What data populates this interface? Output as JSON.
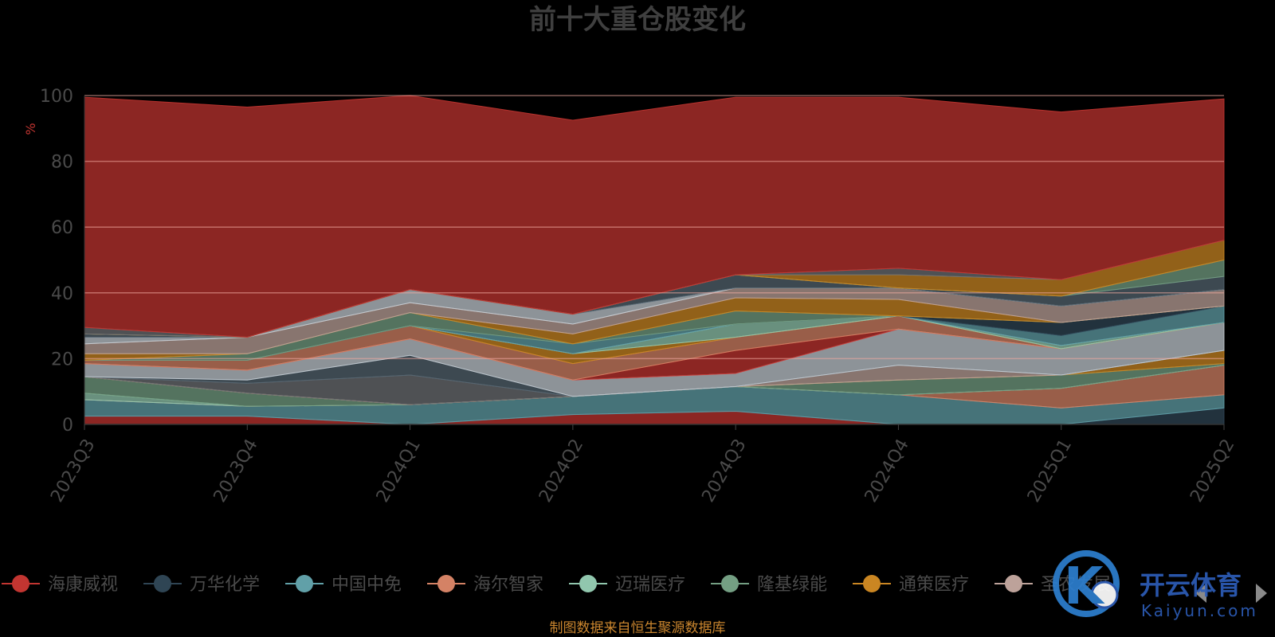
{
  "chart_data": {
    "type": "area",
    "stacked": true,
    "title": "前十大重仓股变化",
    "y_unit": "%",
    "ylim": [
      0,
      100
    ],
    "yticks": [
      "0",
      "20",
      "40",
      "60",
      "80",
      "100"
    ],
    "grid": true,
    "categories": [
      "2023Q3",
      "2023Q4",
      "2024Q1",
      "2024Q2",
      "2024Q3",
      "2024Q4",
      "2025Q1",
      "2025Q2"
    ],
    "series": [
      {
        "name": "海康威视",
        "color": "#c23531",
        "values": [
          2.5,
          2.5,
          0,
          3,
          4,
          0,
          0,
          0
        ]
      },
      {
        "name": "万华化学",
        "color": "#2f4554",
        "values": [
          0,
          0,
          0,
          0,
          0,
          0,
          0,
          5
        ]
      },
      {
        "name": "中国中免",
        "color": "#61a0a8",
        "values": [
          5,
          3,
          6,
          5.5,
          7.5,
          9,
          5,
          4
        ]
      },
      {
        "name": "海尔智家",
        "color": "#d48265",
        "values": [
          0,
          0,
          0,
          0,
          0,
          0,
          6,
          9
        ]
      },
      {
        "name": "迈瑞医疗",
        "color": "#91c7ae",
        "values": [
          2,
          0,
          0,
          0,
          0,
          0,
          0,
          0
        ]
      },
      {
        "name": "隆基绿能",
        "color": "#749f83",
        "values": [
          5,
          4,
          0,
          0,
          0,
          4.5,
          4,
          0.5
        ]
      },
      {
        "name": "通策医疗",
        "color": "#ca8622",
        "values": [
          0,
          0,
          0,
          0,
          0,
          0,
          0,
          4
        ]
      },
      {
        "name": "圣农发展",
        "color": "#bda29a",
        "values": [
          0,
          0,
          0,
          0,
          0,
          4.5,
          0,
          0
        ]
      },
      {
        "name": "",
        "color": "#6e7074",
        "values": [
          0,
          3,
          9,
          0,
          0,
          0,
          0,
          0
        ]
      },
      {
        "name": "",
        "color": "#546570",
        "values": [
          0,
          1,
          6,
          0,
          0,
          0,
          0,
          0
        ]
      },
      {
        "name": "",
        "color": "#c4ccd3",
        "values": [
          4,
          3,
          5,
          5,
          4,
          11,
          8,
          8.5
        ]
      },
      {
        "name": "",
        "color": "#c23531",
        "values": [
          0,
          0,
          0,
          0,
          7,
          0,
          0,
          0
        ]
      },
      {
        "name": "",
        "color": "#d48265",
        "values": [
          1,
          3,
          4,
          5,
          4,
          4,
          0,
          0
        ]
      },
      {
        "name": "",
        "color": "#ca8622",
        "values": [
          0,
          0,
          0,
          3,
          0,
          0,
          0,
          0
        ]
      },
      {
        "name": "",
        "color": "#91c7ae",
        "values": [
          0,
          0,
          0,
          0,
          4,
          0,
          1,
          0
        ]
      },
      {
        "name": "",
        "color": "#61a0a8",
        "values": [
          0,
          0,
          0,
          3,
          0,
          0,
          3,
          5
        ]
      },
      {
        "name": "",
        "color": "#2f4554",
        "values": [
          0,
          0,
          0,
          0,
          0,
          0,
          4,
          0
        ]
      },
      {
        "name": "",
        "color": "#749f83",
        "values": [
          0,
          2,
          4,
          0,
          4,
          0,
          0,
          0
        ]
      },
      {
        "name": "",
        "color": "#ca8622",
        "values": [
          2,
          0,
          0,
          3,
          4,
          5,
          0,
          0
        ]
      },
      {
        "name": "",
        "color": "#bda29a",
        "values": [
          3,
          5,
          3,
          3,
          3,
          3.5,
          5,
          5
        ]
      },
      {
        "name": "",
        "color": "#c4ccd3",
        "values": [
          2,
          0,
          4,
          3,
          0,
          0,
          0,
          0
        ]
      },
      {
        "name": "",
        "color": "#546570",
        "values": [
          1,
          0,
          0,
          0,
          4,
          0,
          3,
          4
        ]
      },
      {
        "name": "",
        "color": "#749f83",
        "values": [
          0,
          0,
          0,
          0,
          0,
          0,
          0,
          5
        ]
      },
      {
        "name": "",
        "color": "#ca8622",
        "values": [
          0,
          0,
          0,
          0,
          0,
          4,
          5,
          6
        ]
      },
      {
        "name": "",
        "color": "#6e7074",
        "values": [
          2,
          0,
          0,
          0,
          0,
          2,
          0,
          0
        ]
      },
      {
        "name": "",
        "color": "#c23531",
        "values": [
          70,
          70,
          59,
          59,
          54,
          52,
          51,
          43
        ]
      }
    ],
    "legend_position": "bottom",
    "legend_names": [
      "海康威视",
      "万华化学",
      "中国中免",
      "海尔智家",
      "迈瑞医疗",
      "隆基绿能",
      "通策医疗",
      "圣农发展"
    ]
  },
  "footer": {
    "source": "制图数据来自恒生聚源数据库"
  },
  "watermark": {
    "logo_letter": "K",
    "brand": "开云体育",
    "brand_sub": "Kaiyun.com"
  },
  "legend_nav": {
    "prev_icon": "chevron-left-icon",
    "next_icon": "chevron-right-icon"
  }
}
